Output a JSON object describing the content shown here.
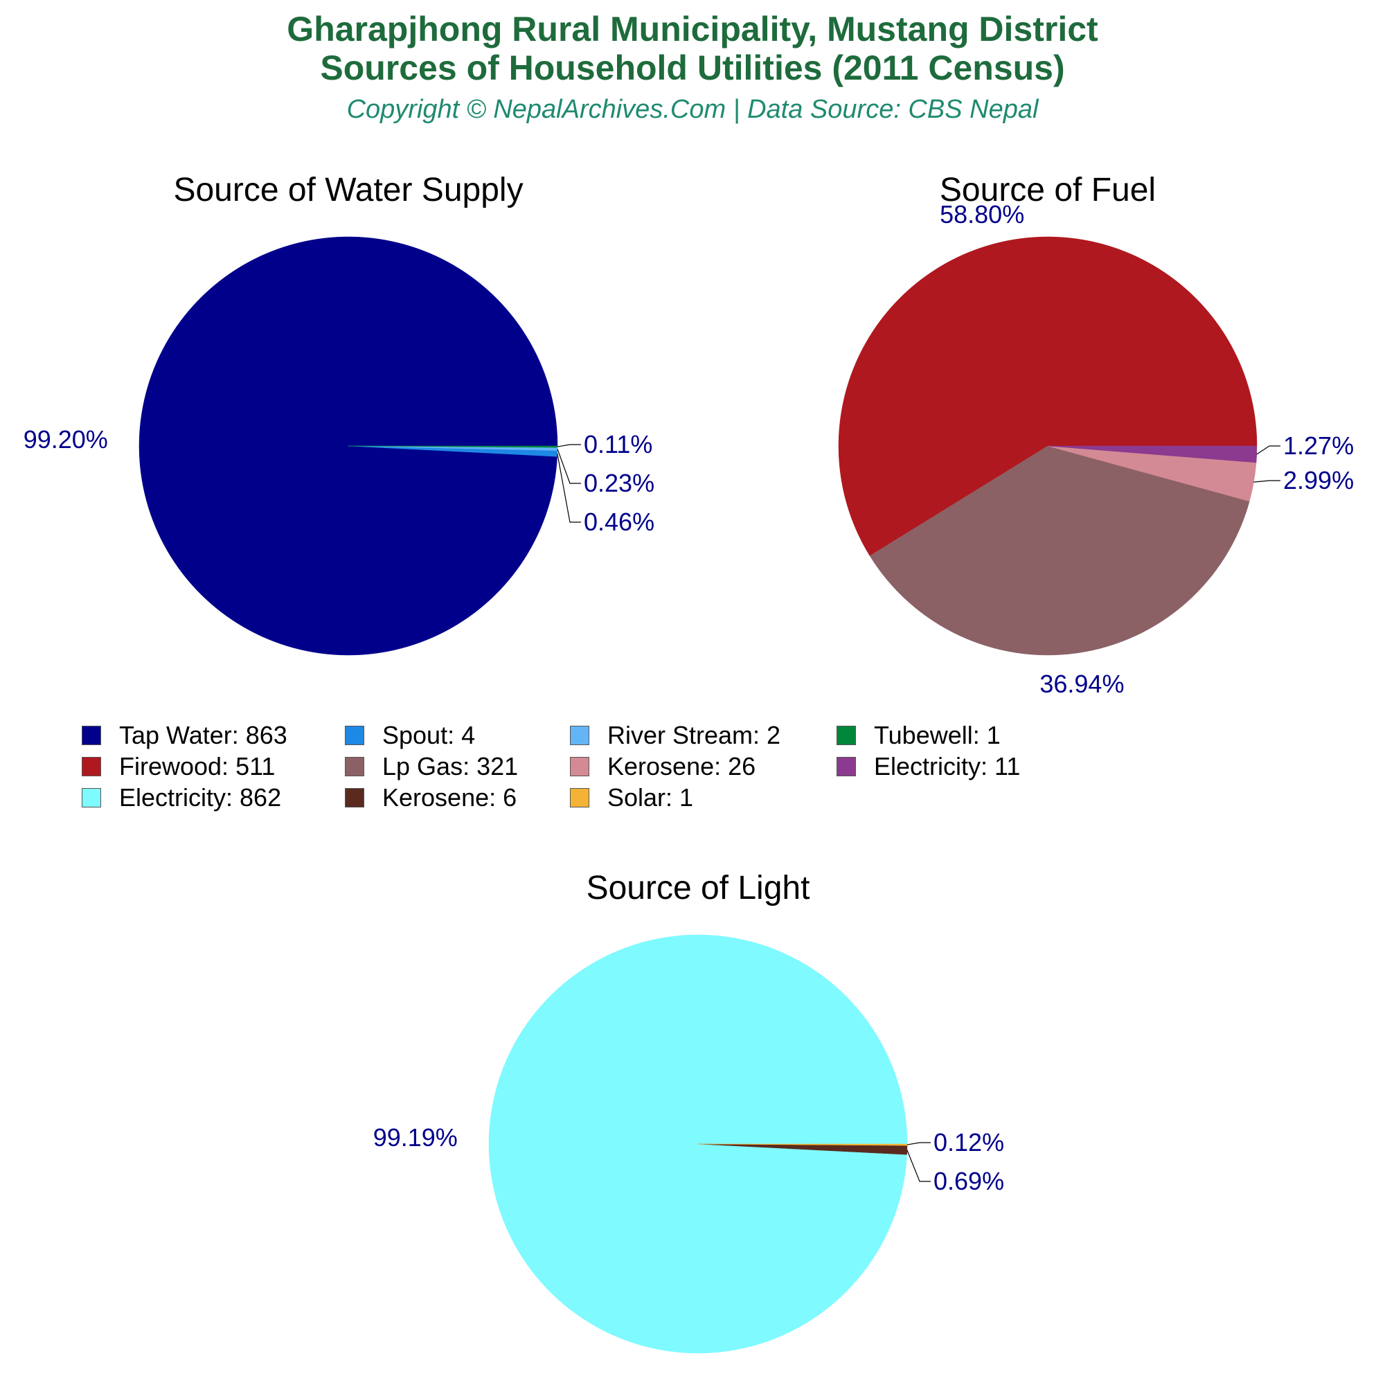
{
  "header": {
    "title_line1": "Gharapjhong Rural Municipality, Mustang District",
    "title_line2": "Sources of Household Utilities (2011 Census)",
    "subtitle": "Copyright © NepalArchives.Com | Data Source: CBS Nepal"
  },
  "label_color": "#00008b",
  "chart_data": [
    {
      "type": "pie",
      "title": "Source of Water Supply",
      "slices": [
        {
          "label": "Tap Water",
          "value": 863,
          "percent_label": "99.20%",
          "color": "#00008b"
        },
        {
          "label": "Spout",
          "value": 4,
          "percent_label": "0.46%",
          "color": "#1e88e5"
        },
        {
          "label": "River Stream",
          "value": 2,
          "percent_label": "0.23%",
          "color": "#64b5f6"
        },
        {
          "label": "Tubewell",
          "value": 1,
          "percent_label": "0.11%",
          "color": "#00873c"
        }
      ]
    },
    {
      "type": "pie",
      "title": "Source of Fuel",
      "slices": [
        {
          "label": "Firewood",
          "value": 511,
          "percent_label": "58.80%",
          "color": "#b0181f"
        },
        {
          "label": "Lp Gas",
          "value": 321,
          "percent_label": "36.94%",
          "color": "#8b6165"
        },
        {
          "label": "Kerosene",
          "value": 26,
          "percent_label": "2.99%",
          "color": "#d48a94"
        },
        {
          "label": "Electricity",
          "value": 11,
          "percent_label": "1.27%",
          "color": "#8b3a8f"
        }
      ]
    },
    {
      "type": "pie",
      "title": "Source of Light",
      "slices": [
        {
          "label": "Electricity",
          "value": 862,
          "percent_label": "99.19%",
          "color": "#7ffaff"
        },
        {
          "label": "Kerosene",
          "value": 6,
          "percent_label": "0.69%",
          "color": "#5a2a1f"
        },
        {
          "label": "Solar",
          "value": 1,
          "percent_label": "0.12%",
          "color": "#f5b335"
        }
      ]
    }
  ],
  "legend": [
    {
      "text": "Tap Water: 863",
      "color": "#00008b"
    },
    {
      "text": "Spout: 4",
      "color": "#1e88e5"
    },
    {
      "text": "River Stream: 2",
      "color": "#64b5f6"
    },
    {
      "text": "Tubewell: 1",
      "color": "#00873c"
    },
    {
      "text": "Firewood: 511",
      "color": "#b0181f"
    },
    {
      "text": "Lp Gas: 321",
      "color": "#8b6165"
    },
    {
      "text": "Kerosene: 26",
      "color": "#d48a94"
    },
    {
      "text": "Electricity: 11",
      "color": "#8b3a8f"
    },
    {
      "text": "Electricity: 862",
      "color": "#7ffaff"
    },
    {
      "text": "Kerosene: 6",
      "color": "#5a2a1f"
    },
    {
      "text": "Solar: 1",
      "color": "#f5b335"
    }
  ]
}
